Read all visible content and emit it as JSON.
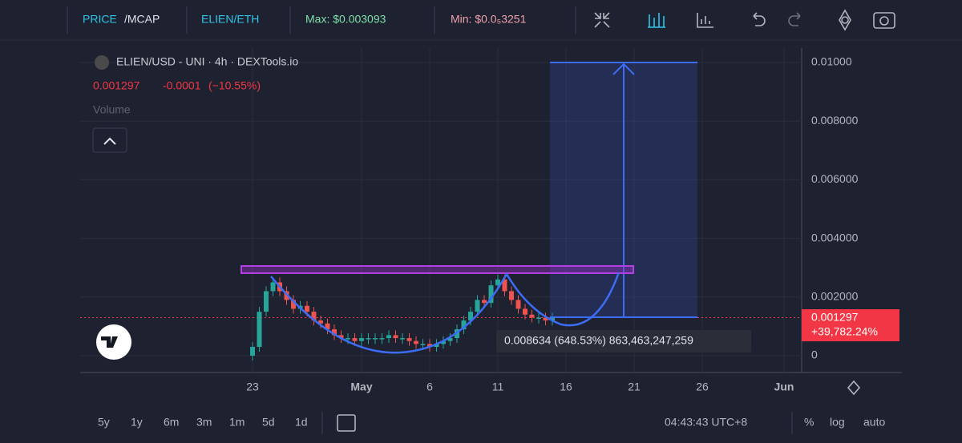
{
  "toolbar": {
    "price": "PRICE",
    "mcap": "/MCAP",
    "pair": "ELIEN/ETH",
    "max": "Max: $0.003093",
    "min": "Min: $0.0₅3251"
  },
  "legend": {
    "title": "ELIEN/USD - UNI · 4h · DEXTools.io",
    "last": "0.001297",
    "change": "-0.0001",
    "percent": "(−10.55%)",
    "volume": "Volume"
  },
  "chart": {
    "ylim": [
      0,
      0.01
    ],
    "yticks": [
      {
        "value": 0.01,
        "label": "0.01000"
      },
      {
        "value": 0.008,
        "label": "0.008000"
      },
      {
        "value": 0.006,
        "label": "0.006000"
      },
      {
        "value": 0.004,
        "label": "0.004000"
      },
      {
        "value": 0.002,
        "label": "0.002000"
      },
      0
    ],
    "xticks": [
      {
        "value": 0,
        "label": "23"
      },
      {
        "value": 8,
        "label": "May"
      },
      {
        "value": 13,
        "label": "6"
      },
      {
        "value": 18,
        "label": "11"
      },
      {
        "value": 23,
        "label": "16"
      },
      {
        "value": 28,
        "label": "21"
      },
      {
        "value": 33,
        "label": "26"
      },
      {
        "value": 39,
        "label": "Jun"
      }
    ],
    "x": [
      0,
      0.5,
      1,
      1.5,
      2,
      2.5,
      3,
      3.5,
      4,
      4.5,
      5,
      5.5,
      6,
      6.5,
      7,
      7.5,
      8,
      8.5,
      9,
      9.5,
      10,
      10.5,
      11,
      11.5,
      12,
      12.5,
      13,
      13.5,
      14,
      14.5,
      15,
      15.5,
      16,
      16.5,
      17,
      17.5,
      18,
      18.5,
      19,
      19.5,
      20,
      20.5,
      21,
      21.5,
      22
    ],
    "prices": [
      0.0003,
      0.0015,
      0.0022,
      0.0025,
      0.0022,
      0.0019,
      0.0016,
      0.0017,
      0.0015,
      0.0012,
      0.0011,
      0.0009,
      0.0007,
      0.0006,
      0.0006,
      0.0005,
      0.0006,
      0.0006,
      0.0006,
      0.0006,
      0.0007,
      0.0006,
      0.0006,
      0.0005,
      0.0004,
      0.0004,
      0.0003,
      0.0004,
      0.0005,
      0.0006,
      0.0009,
      0.0012,
      0.0015,
      0.0019,
      0.0018,
      0.0024,
      0.0026,
      0.0022,
      0.0019,
      0.0016,
      0.0014,
      0.0013,
      0.0013,
      0.0012,
      0.0013
    ],
    "price_tag": {
      "value": 0.001297,
      "label": "0.001297"
    },
    "price_change": "+39,782.24%",
    "tooltip": "0.008634 (648.53%) 863,463,247,259"
  },
  "bottom_bar": {
    "ranges": [
      "5y",
      "1y",
      "6m",
      "3m",
      "1m",
      "5d",
      "1d"
    ],
    "time": "04:43:43 UTC+8",
    "percent": "%",
    "log": "log",
    "auto": "auto"
  }
}
